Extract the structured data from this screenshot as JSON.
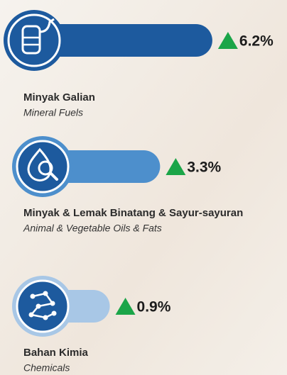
{
  "chart_data": {
    "type": "bar",
    "categories": [
      "Minyak Galian",
      "Minyak & Lemak Binatang & Sayur-sayuran",
      "Bahan Kimia"
    ],
    "category_translations": [
      "Mineral Fuels",
      "Animal & Vegetable Oils & Fats",
      "Chemicals"
    ],
    "values": [
      6.2,
      3.3,
      0.9
    ],
    "value_labels": [
      "6.2%",
      "3.3%",
      "0.9%"
    ],
    "colors": [
      "#1d5a9e",
      "#4d8fcc",
      "#a8c7e6"
    ],
    "marker_color": "#1ba548"
  }
}
